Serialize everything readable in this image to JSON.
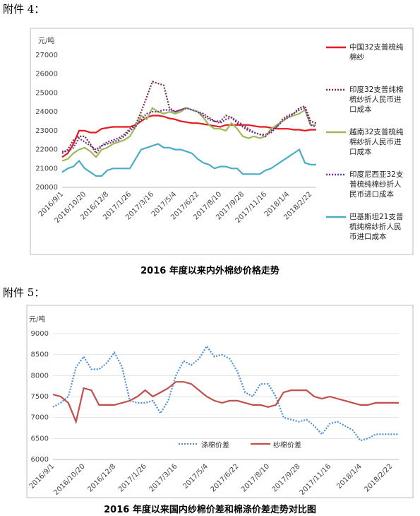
{
  "annexes": [
    "附件 4：",
    "附件 5："
  ],
  "chart_data": [
    {
      "type": "line",
      "title": "2016 年度以来内外棉纱价格走势",
      "y_label": "元/吨",
      "categories": [
        "2016/9/1",
        null,
        null,
        null,
        "2016/10/20",
        null,
        null,
        null,
        "2016/12/8",
        null,
        null,
        null,
        "2017/1/26",
        null,
        null,
        null,
        "2017/3/16",
        null,
        null,
        null,
        "2017/5/4",
        null,
        null,
        null,
        "2017/6/22",
        null,
        null,
        null,
        "2017/8/10",
        null,
        null,
        null,
        "2017/9/28",
        null,
        null,
        null,
        "2017/11/16",
        null,
        null,
        null,
        "2018/1/4",
        null,
        null,
        null,
        "2018/2/22",
        null
      ],
      "ylim": [
        20000,
        27000
      ],
      "yticks": [
        20000,
        21000,
        22000,
        23000,
        24000,
        25000,
        26000,
        27000
      ],
      "grid": false,
      "legend": "right",
      "series": [
        {
          "name": "中国32支普梳纯棉纱",
          "color": "#e8191e",
          "style": "solid",
          "values": [
            21600,
            21800,
            22300,
            23000,
            23000,
            22900,
            22900,
            23100,
            23150,
            23200,
            23200,
            23200,
            23200,
            23300,
            23500,
            23700,
            23800,
            23800,
            23750,
            23650,
            23600,
            23500,
            23450,
            23400,
            23400,
            23350,
            23300,
            23250,
            23200,
            23300,
            23300,
            23300,
            23300,
            23300,
            23250,
            23200,
            23200,
            23150,
            23100,
            23100,
            23100,
            23050,
            23050,
            23000,
            23050,
            23050
          ]
        },
        {
          "name": "印度32支普纯棉梳纱折人民币进口成本",
          "color": "#7b2c3a",
          "style": "dotted",
          "values": [
            21800,
            22000,
            22500,
            22700,
            22700,
            22300,
            21800,
            22200,
            22400,
            22500,
            22600,
            22800,
            23100,
            23300,
            24000,
            24800,
            25600,
            25500,
            25400,
            24200,
            24000,
            24100,
            24200,
            24100,
            24000,
            23900,
            23700,
            23500,
            23500,
            23800,
            23700,
            23400,
            23200,
            23000,
            22900,
            22800,
            22800,
            22900,
            23200,
            23600,
            23800,
            23900,
            24200,
            24300,
            23500,
            23400
          ]
        },
        {
          "name": "越南32支普梳纯棉纱折人民币进口成本",
          "color": "#9bbb59",
          "style": "solid",
          "values": [
            21400,
            21500,
            21800,
            22000,
            22100,
            21900,
            21600,
            22000,
            22100,
            22300,
            22400,
            22500,
            22700,
            23200,
            23800,
            23600,
            24200,
            24000,
            23900,
            24000,
            23900,
            24000,
            24200,
            24100,
            24000,
            23700,
            23300,
            23100,
            23100,
            23000,
            23400,
            23100,
            22700,
            22600,
            22700,
            22600,
            22700,
            23100,
            23300,
            23500,
            23700,
            23800,
            23900,
            24100,
            23300,
            23300
          ]
        },
        {
          "name": "印度尼西亚32支普梳纯棉纱折人民币进口成本",
          "color": "#7030a0",
          "style": "dotted",
          "values": [
            21900,
            21900,
            22100,
            22600,
            22400,
            22200,
            22000,
            22200,
            22300,
            22400,
            22500,
            22700,
            23000,
            23200,
            23600,
            23900,
            24000,
            24000,
            24100,
            24100,
            24000,
            24100,
            24200,
            24100,
            24000,
            23800,
            23600,
            23500,
            23400,
            23600,
            23700,
            23500,
            23300,
            23100,
            22900,
            22800,
            22700,
            23000,
            23200,
            23500,
            23700,
            23900,
            24100,
            24200,
            23300,
            23200
          ]
        },
        {
          "name": "巴基斯坦21支普梳纯棉纱折人民币进口成本",
          "color": "#4bacc6",
          "style": "solid",
          "values": [
            20800,
            21000,
            21100,
            21400,
            21000,
            20800,
            20600,
            20600,
            20900,
            21000,
            21000,
            21000,
            21000,
            21500,
            22000,
            22100,
            22200,
            22300,
            22100,
            22100,
            22000,
            22000,
            21900,
            21800,
            21500,
            21300,
            21200,
            21000,
            21100,
            21100,
            21000,
            21000,
            20700,
            20700,
            20700,
            20700,
            20900,
            21000,
            21200,
            21400,
            21600,
            21800,
            22000,
            21300,
            21200,
            21200
          ]
        }
      ]
    },
    {
      "type": "line",
      "title": "2016 年度以来国内纱棉价差和棉涤价差走势对比图",
      "y_label": "元/吨",
      "categories": [
        "2016/9/1",
        null,
        null,
        null,
        "2016/10/20",
        null,
        null,
        null,
        "2016/12/8",
        null,
        null,
        null,
        "2017/1/26",
        null,
        null,
        null,
        "2017/3/16",
        null,
        null,
        null,
        "2017/5/4",
        null,
        null,
        null,
        "2017/6/22",
        null,
        null,
        null,
        "2017/8/10",
        null,
        null,
        null,
        "2017/9/28",
        null,
        null,
        null,
        "2017/11/16",
        null,
        null,
        null,
        "2018/1/4",
        null,
        null,
        null,
        "2018/2/22",
        null
      ],
      "ylim": [
        6000,
        9000
      ],
      "yticks": [
        6000,
        6500,
        7000,
        7500,
        8000,
        8500,
        9000
      ],
      "grid": true,
      "legend": "bottom",
      "series": [
        {
          "name": "涤棉价差",
          "color": "#4f8fd6",
          "style": "dotted",
          "values": [
            7250,
            7350,
            7500,
            8200,
            8450,
            8150,
            8150,
            8300,
            8550,
            8200,
            7400,
            7350,
            7350,
            7400,
            7100,
            7400,
            8000,
            8350,
            8250,
            8400,
            8700,
            8450,
            8500,
            8400,
            8100,
            7600,
            7500,
            7800,
            7800,
            7500,
            7000,
            6950,
            6900,
            6950,
            6800,
            6600,
            6850,
            6900,
            6800,
            6700,
            6450,
            6500,
            6600,
            6600,
            6600,
            6600
          ]
        },
        {
          "name": "纱棉价差",
          "color": "#c0504d",
          "style": "solid",
          "values": [
            7550,
            7500,
            7350,
            6900,
            7700,
            7650,
            7300,
            7300,
            7300,
            7350,
            7400,
            7500,
            7650,
            7500,
            7600,
            7700,
            7850,
            7850,
            7800,
            7650,
            7500,
            7400,
            7350,
            7400,
            7400,
            7350,
            7300,
            7300,
            7250,
            7300,
            7600,
            7650,
            7650,
            7650,
            7500,
            7450,
            7500,
            7450,
            7400,
            7350,
            7300,
            7300,
            7350,
            7350,
            7350,
            7350
          ]
        }
      ]
    }
  ]
}
